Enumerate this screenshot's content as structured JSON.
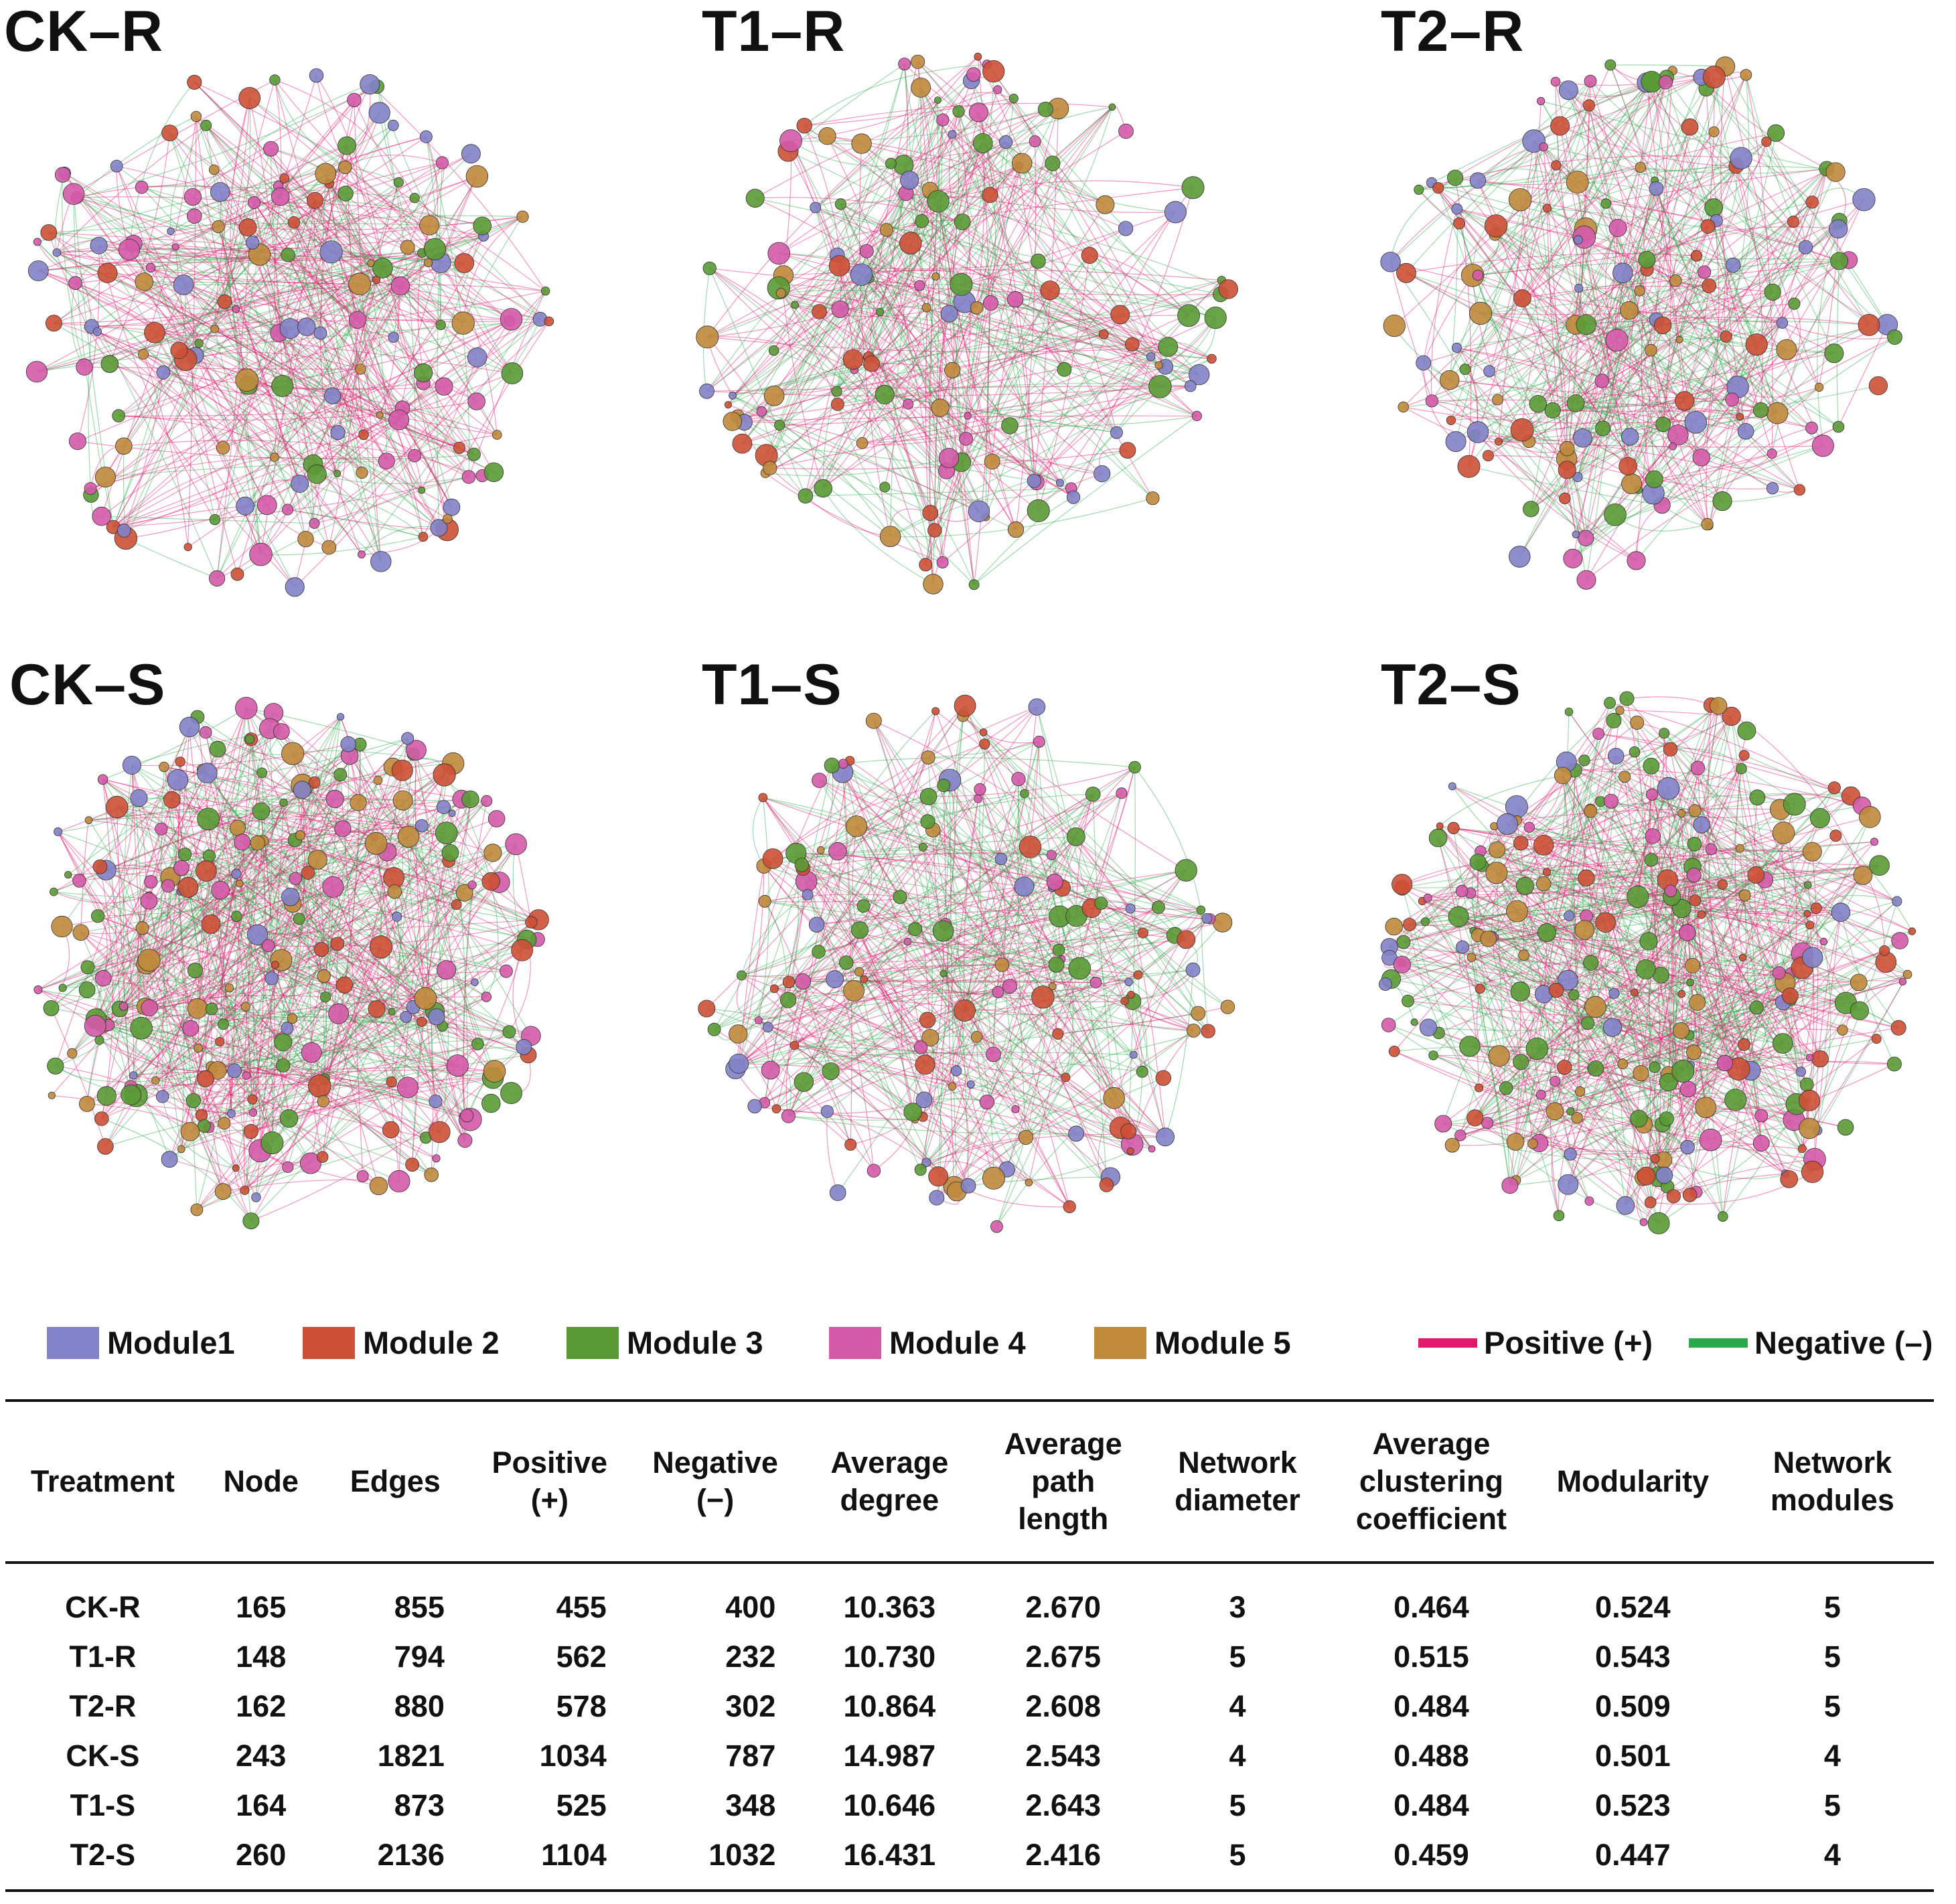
{
  "panels": [
    {
      "title": "CK–R",
      "modules": [
        1,
        2,
        3,
        4,
        5
      ],
      "node_count": 165
    },
    {
      "title": "T1–R",
      "node_count": 148
    },
    {
      "title": "T2–R",
      "node_count": 162
    },
    {
      "title": "CK–S",
      "node_count": 243
    },
    {
      "title": "T1–S",
      "node_count": 164
    },
    {
      "title": "T2–S",
      "node_count": 260
    }
  ],
  "legend": {
    "modules": [
      {
        "label": "Module1",
        "color": "#8282c8"
      },
      {
        "label": "Module 2",
        "color": "#cc5035"
      },
      {
        "label": "Module 3",
        "color": "#5a9a35"
      },
      {
        "label": "Module 4",
        "color": "#d45aa8"
      },
      {
        "label": "Module 5",
        "color": "#bf8a3c"
      }
    ],
    "edges": [
      {
        "label": "Positive (+)",
        "color": "#e0186e"
      },
      {
        "label": "Negative (–)",
        "color": "#2aa84a"
      }
    ]
  },
  "table": {
    "headers": [
      "Treatment",
      "Node",
      "Edges",
      "Positive\n(+)",
      "Negative\n(−)",
      "Average\ndegree",
      "Average\npath\nlength",
      "Network\ndiameter",
      "Average\nclustering\ncoefficient",
      "Modularity",
      "Network\nmodules"
    ],
    "rows": [
      [
        "CK-R",
        "165",
        "855",
        "455",
        "400",
        "10.363",
        "2.670",
        "3",
        "0.464",
        "0.524",
        "5"
      ],
      [
        "T1-R",
        "148",
        "794",
        "562",
        "232",
        "10.730",
        "2.675",
        "5",
        "0.515",
        "0.543",
        "5"
      ],
      [
        "T2-R",
        "162",
        "880",
        "578",
        "302",
        "10.864",
        "2.608",
        "4",
        "0.484",
        "0.509",
        "5"
      ],
      [
        "CK-S",
        "243",
        "1821",
        "1034",
        "787",
        "14.987",
        "2.543",
        "4",
        "0.488",
        "0.501",
        "4"
      ],
      [
        "T1-S",
        "164",
        "873",
        "525",
        "348",
        "10.646",
        "2.643",
        "5",
        "0.484",
        "0.523",
        "5"
      ],
      [
        "T2-S",
        "260",
        "2136",
        "1104",
        "1032",
        "16.431",
        "2.416",
        "5",
        "0.459",
        "0.447",
        "4"
      ]
    ]
  }
}
